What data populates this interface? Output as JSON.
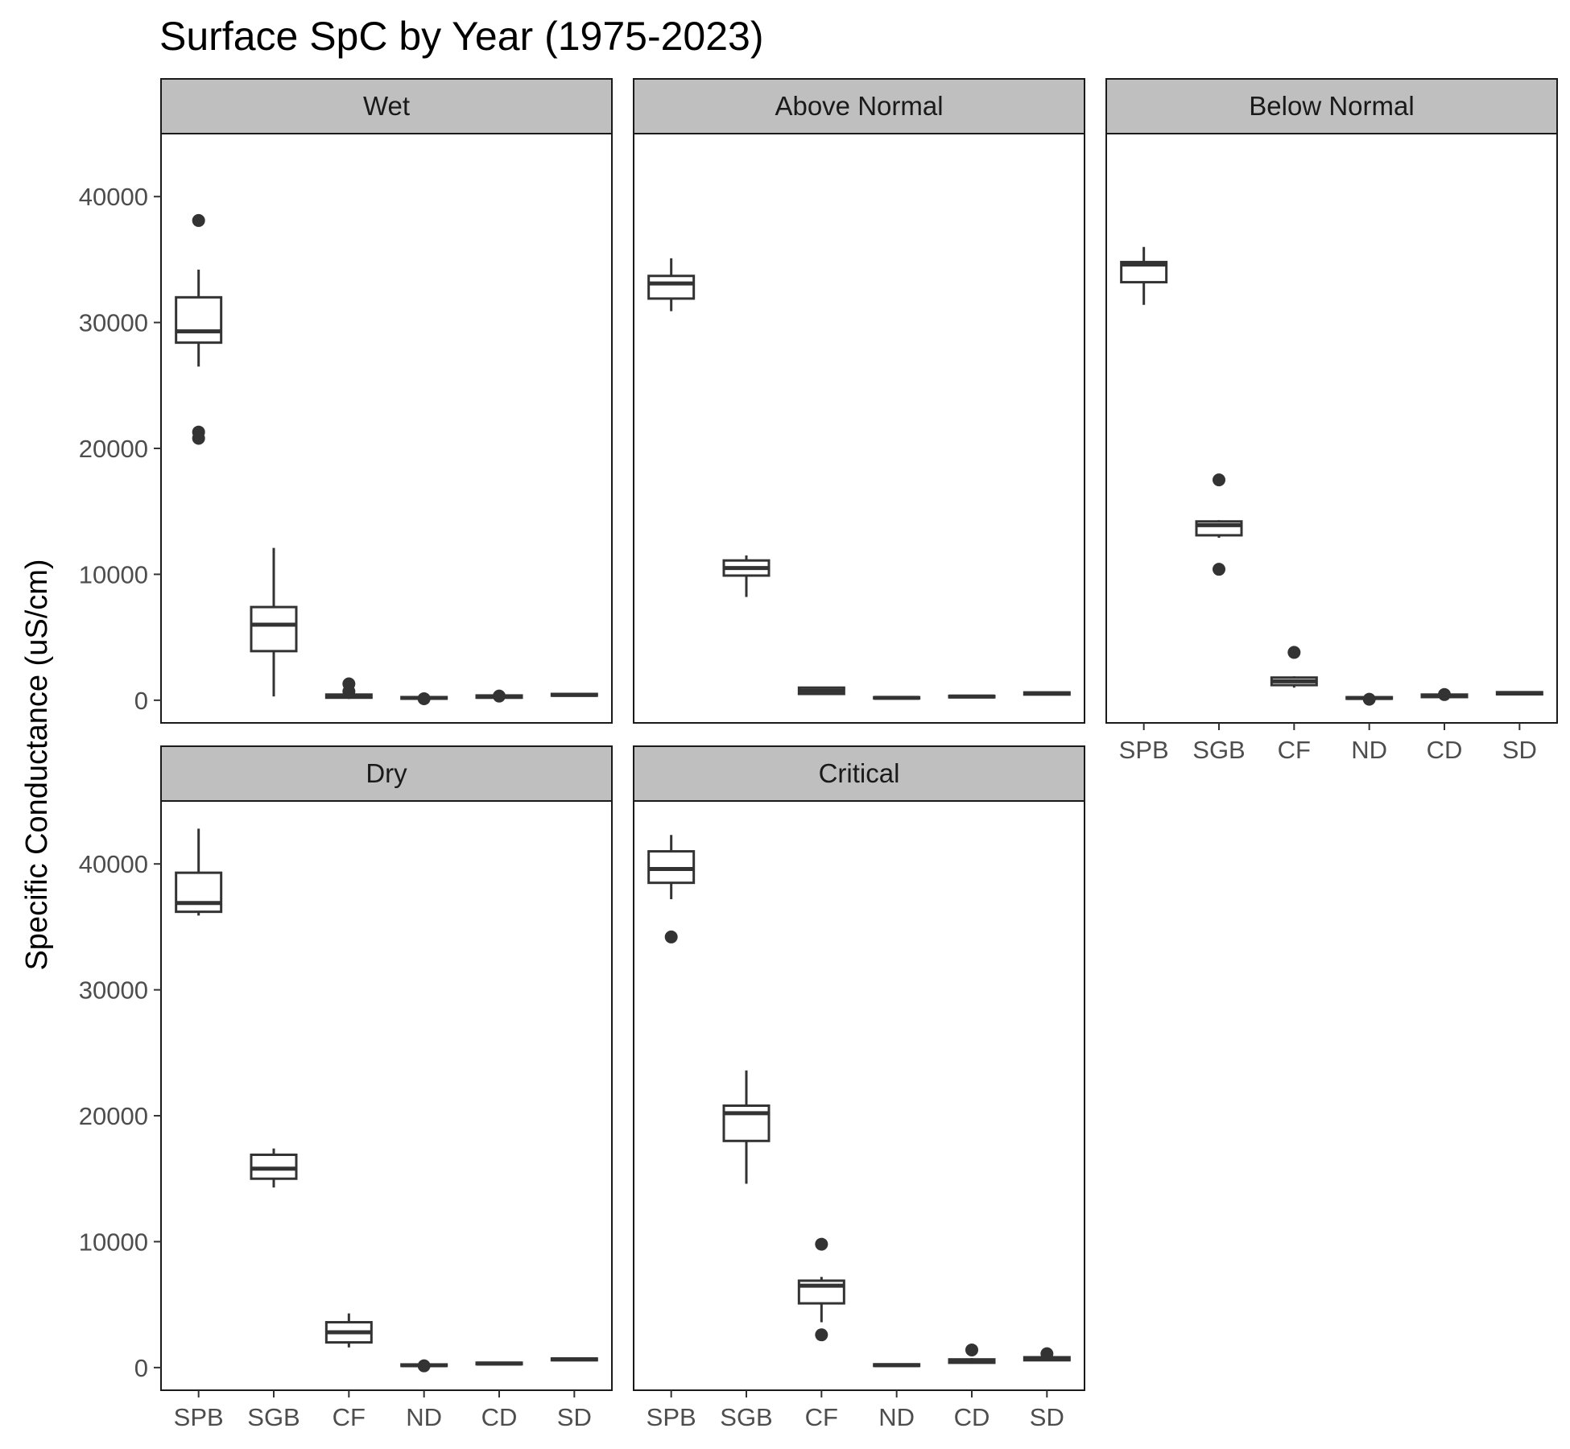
{
  "chart_data": {
    "type": "box",
    "title": "Surface SpC by Year (1975-2023)",
    "ylabel": "Specific Conductance (uS/cm)",
    "xlabel": "",
    "ylim": [
      -1800,
      45000
    ],
    "yticks": [
      0,
      10000,
      20000,
      30000,
      40000
    ],
    "categories": [
      "SPB",
      "SGB",
      "CF",
      "ND",
      "CD",
      "SD"
    ],
    "facets": [
      {
        "label": "Wet",
        "boxes": [
          {
            "category": "SPB",
            "min": 26500,
            "q1": 28400,
            "median": 29300,
            "q3": 32000,
            "max": 34200,
            "outliers": [
              38100,
              21300,
              20800
            ]
          },
          {
            "category": "SGB",
            "min": 300,
            "q1": 3900,
            "median": 6000,
            "q3": 7400,
            "max": 12100,
            "outliers": []
          },
          {
            "category": "CF",
            "min": 100,
            "q1": 200,
            "median": 350,
            "q3": 450,
            "max": 600,
            "outliers": [
              1300,
              700
            ]
          },
          {
            "category": "ND",
            "min": 80,
            "q1": 120,
            "median": 180,
            "q3": 250,
            "max": 350,
            "outliers": [
              120
            ]
          },
          {
            "category": "CD",
            "min": 120,
            "q1": 200,
            "median": 270,
            "q3": 380,
            "max": 480,
            "outliers": [
              330
            ]
          },
          {
            "category": "SD",
            "min": 300,
            "q1": 360,
            "median": 420,
            "q3": 500,
            "max": 560,
            "outliers": []
          }
        ]
      },
      {
        "label": "Above Normal",
        "boxes": [
          {
            "category": "SPB",
            "min": 30900,
            "q1": 31900,
            "median": 33100,
            "q3": 33700,
            "max": 35100,
            "outliers": []
          },
          {
            "category": "SGB",
            "min": 8200,
            "q1": 9900,
            "median": 10500,
            "q3": 11100,
            "max": 11500,
            "outliers": []
          },
          {
            "category": "CF",
            "min": 450,
            "q1": 500,
            "median": 750,
            "q3": 1000,
            "max": 1050,
            "outliers": []
          },
          {
            "category": "ND",
            "min": 100,
            "q1": 140,
            "median": 190,
            "q3": 240,
            "max": 290,
            "outliers": []
          },
          {
            "category": "CD",
            "min": 180,
            "q1": 230,
            "median": 290,
            "q3": 350,
            "max": 400,
            "outliers": []
          },
          {
            "category": "SD",
            "min": 400,
            "q1": 450,
            "median": 540,
            "q3": 620,
            "max": 680,
            "outliers": []
          }
        ]
      },
      {
        "label": "Below Normal",
        "boxes": [
          {
            "category": "SPB",
            "min": 31400,
            "q1": 33200,
            "median": 34600,
            "q3": 34800,
            "max": 36000,
            "outliers": []
          },
          {
            "category": "SGB",
            "min": 12900,
            "q1": 13100,
            "median": 13900,
            "q3": 14200,
            "max": 14300,
            "outliers": [
              17500,
              10400
            ]
          },
          {
            "category": "CF",
            "min": 1000,
            "q1": 1200,
            "median": 1500,
            "q3": 1800,
            "max": 1900,
            "outliers": [
              3800
            ]
          },
          {
            "category": "ND",
            "min": 80,
            "q1": 120,
            "median": 170,
            "q3": 240,
            "max": 300,
            "outliers": [
              80
            ]
          },
          {
            "category": "CD",
            "min": 150,
            "q1": 250,
            "median": 330,
            "q3": 450,
            "max": 520,
            "outliers": [
              450
            ]
          },
          {
            "category": "SD",
            "min": 400,
            "q1": 470,
            "median": 560,
            "q3": 640,
            "max": 700,
            "outliers": []
          }
        ]
      },
      {
        "label": "Dry",
        "boxes": [
          {
            "category": "SPB",
            "min": 35900,
            "q1": 36200,
            "median": 36900,
            "q3": 39300,
            "max": 42800,
            "outliers": []
          },
          {
            "category": "SGB",
            "min": 14300,
            "q1": 15000,
            "median": 15800,
            "q3": 16900,
            "max": 17400,
            "outliers": []
          },
          {
            "category": "CF",
            "min": 1600,
            "q1": 2000,
            "median": 2800,
            "q3": 3600,
            "max": 4300,
            "outliers": []
          },
          {
            "category": "ND",
            "min": 80,
            "q1": 130,
            "median": 180,
            "q3": 250,
            "max": 310,
            "outliers": [
              140
            ]
          },
          {
            "category": "CD",
            "min": 200,
            "q1": 260,
            "median": 320,
            "q3": 390,
            "max": 440,
            "outliers": []
          },
          {
            "category": "SD",
            "min": 500,
            "q1": 580,
            "median": 650,
            "q3": 720,
            "max": 780,
            "outliers": []
          }
        ]
      },
      {
        "label": "Critical",
        "boxes": [
          {
            "category": "SPB",
            "min": 37200,
            "q1": 38500,
            "median": 39600,
            "q3": 41000,
            "max": 42300,
            "outliers": [
              34200
            ]
          },
          {
            "category": "SGB",
            "min": 14600,
            "q1": 18000,
            "median": 20200,
            "q3": 20800,
            "max": 23600,
            "outliers": []
          },
          {
            "category": "CF",
            "min": 3600,
            "q1": 5100,
            "median": 6500,
            "q3": 6900,
            "max": 7200,
            "outliers": [
              9800,
              2600
            ]
          },
          {
            "category": "ND",
            "min": 80,
            "q1": 130,
            "median": 190,
            "q3": 260,
            "max": 320,
            "outliers": []
          },
          {
            "category": "CD",
            "min": 300,
            "q1": 380,
            "median": 500,
            "q3": 650,
            "max": 750,
            "outliers": [
              1400
            ]
          },
          {
            "category": "SD",
            "min": 500,
            "q1": 580,
            "median": 700,
            "q3": 820,
            "max": 900,
            "outliers": [
              1100
            ]
          }
        ]
      }
    ],
    "colors": {
      "box_stroke": "#333333",
      "strip_fill": "#bfbfbf",
      "panel_border": "#1a1a1a",
      "tick_text": "#4d4d4d"
    },
    "grid": false,
    "legend": "none"
  }
}
